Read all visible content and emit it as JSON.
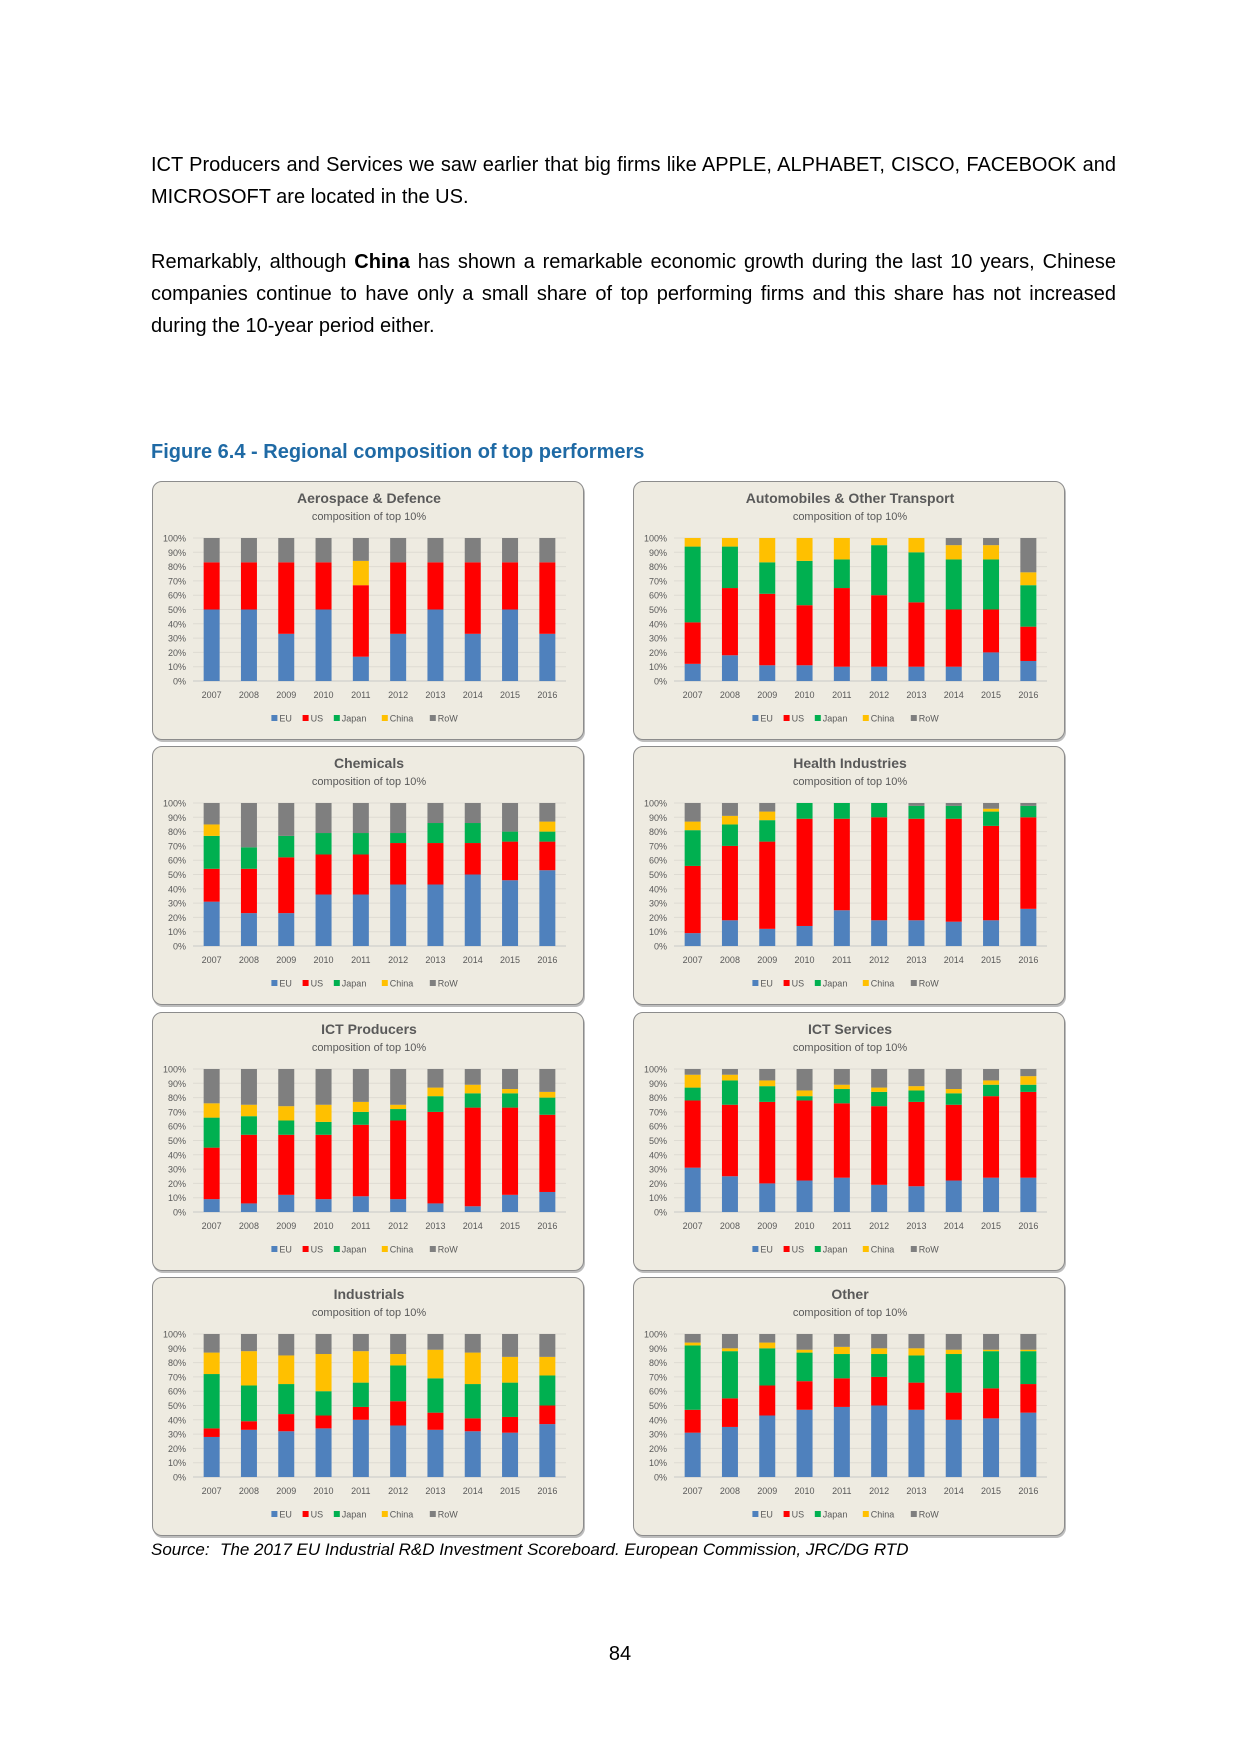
{
  "paragraphs": {
    "p1": "ICT Producers and Services we saw earlier that big firms like APPLE, ALPHABET, CISCO, FACEBOOK and MICROSOFT are located in the US.",
    "p2_before": "Remarkably, although ",
    "p2_bold": "China",
    "p2_after": " has shown a remarkable economic growth during the last 10 years, Chinese companies continue to have only a small share of top performing firms and this share has not increased during the 10-year period either."
  },
  "figure": {
    "caption": "Figure 6.4 - Regional composition of top performers"
  },
  "source": {
    "label": "Source:",
    "text": "The 2017 EU Industrial R&D Investment Scoreboard. European Commission, JRC/DG RTD"
  },
  "page_number": "84",
  "colors": {
    "EU": "#4f81bd",
    "US": "#ff0000",
    "Japan": "#00b050",
    "China": "#ffc000",
    "RoW": "#7f7f7f"
  },
  "chart_data": [
    {
      "type": "bar",
      "stacked": true,
      "title": "Aerospace & Defence",
      "subtitle": "composition of top 10%",
      "categories": [
        "2007",
        "2008",
        "2009",
        "2010",
        "2011",
        "2012",
        "2013",
        "2014",
        "2015",
        "2016"
      ],
      "yticks": [
        "0%",
        "10%",
        "20%",
        "30%",
        "40%",
        "50%",
        "60%",
        "70%",
        "80%",
        "90%",
        "100%"
      ],
      "ylim": [
        0,
        100
      ],
      "legend": "bottom",
      "series": [
        {
          "name": "EU",
          "values": [
            50,
            50,
            33,
            50,
            17,
            33,
            50,
            33,
            50,
            33
          ]
        },
        {
          "name": "US",
          "values": [
            33,
            33,
            50,
            33,
            50,
            50,
            33,
            50,
            33,
            50
          ]
        },
        {
          "name": "Japan",
          "values": [
            0,
            0,
            0,
            0,
            0,
            0,
            0,
            0,
            0,
            0
          ]
        },
        {
          "name": "China",
          "values": [
            0,
            0,
            0,
            0,
            17,
            0,
            0,
            0,
            0,
            0
          ]
        },
        {
          "name": "RoW",
          "values": [
            17,
            17,
            17,
            17,
            16,
            17,
            17,
            17,
            17,
            17
          ]
        }
      ]
    },
    {
      "type": "bar",
      "stacked": true,
      "title": "Automobiles & Other Transport",
      "subtitle": "composition of top 10%",
      "categories": [
        "2007",
        "2008",
        "2009",
        "2010",
        "2011",
        "2012",
        "2013",
        "2014",
        "2015",
        "2016"
      ],
      "yticks": [
        "0%",
        "10%",
        "20%",
        "30%",
        "40%",
        "50%",
        "60%",
        "70%",
        "80%",
        "90%",
        "100%"
      ],
      "ylim": [
        0,
        100
      ],
      "legend": "bottom",
      "series": [
        {
          "name": "EU",
          "values": [
            12,
            18,
            11,
            11,
            10,
            10,
            10,
            10,
            20,
            14
          ]
        },
        {
          "name": "US",
          "values": [
            29,
            47,
            50,
            42,
            55,
            50,
            45,
            40,
            30,
            24
          ]
        },
        {
          "name": "Japan",
          "values": [
            53,
            29,
            22,
            31,
            20,
            35,
            35,
            35,
            35,
            29
          ]
        },
        {
          "name": "China",
          "values": [
            6,
            6,
            17,
            16,
            15,
            5,
            10,
            10,
            10,
            9
          ]
        },
        {
          "name": "RoW",
          "values": [
            0,
            0,
            0,
            0,
            0,
            0,
            0,
            5,
            5,
            24
          ]
        }
      ]
    },
    {
      "type": "bar",
      "stacked": true,
      "title": "Chemicals",
      "subtitle": "composition of top 10%",
      "categories": [
        "2007",
        "2008",
        "2009",
        "2010",
        "2011",
        "2012",
        "2013",
        "2014",
        "2015",
        "2016"
      ],
      "yticks": [
        "0%",
        "10%",
        "20%",
        "30%",
        "40%",
        "50%",
        "60%",
        "70%",
        "80%",
        "90%",
        "100%"
      ],
      "ylim": [
        0,
        100
      ],
      "legend": "bottom",
      "series": [
        {
          "name": "EU",
          "values": [
            31,
            23,
            23,
            36,
            36,
            43,
            43,
            50,
            46,
            53
          ]
        },
        {
          "name": "US",
          "values": [
            23,
            31,
            39,
            28,
            28,
            29,
            29,
            22,
            27,
            20
          ]
        },
        {
          "name": "Japan",
          "values": [
            23,
            15,
            15,
            15,
            15,
            7,
            14,
            14,
            7,
            7
          ]
        },
        {
          "name": "China",
          "values": [
            8,
            0,
            0,
            0,
            0,
            0,
            0,
            0,
            0,
            7
          ]
        },
        {
          "name": "RoW",
          "values": [
            15,
            31,
            23,
            21,
            21,
            21,
            14,
            14,
            20,
            13
          ]
        }
      ]
    },
    {
      "type": "bar",
      "stacked": true,
      "title": "Health Industries",
      "subtitle": "composition of top 10%",
      "categories": [
        "2007",
        "2008",
        "2009",
        "2010",
        "2011",
        "2012",
        "2013",
        "2014",
        "2015",
        "2016"
      ],
      "yticks": [
        "0%",
        "10%",
        "20%",
        "30%",
        "40%",
        "50%",
        "60%",
        "70%",
        "80%",
        "90%",
        "100%"
      ],
      "ylim": [
        0,
        100
      ],
      "legend": "bottom",
      "series": [
        {
          "name": "EU",
          "values": [
            9,
            18,
            12,
            14,
            25,
            18,
            18,
            17,
            18,
            26
          ]
        },
        {
          "name": "US",
          "values": [
            47,
            52,
            61,
            75,
            64,
            72,
            71,
            72,
            66,
            64
          ]
        },
        {
          "name": "Japan",
          "values": [
            25,
            15,
            15,
            11,
            11,
            10,
            9,
            9,
            10,
            8
          ]
        },
        {
          "name": "China",
          "values": [
            6,
            6,
            6,
            0,
            0,
            0,
            0,
            0,
            2,
            0
          ]
        },
        {
          "name": "RoW",
          "values": [
            13,
            9,
            6,
            0,
            0,
            0,
            2,
            2,
            4,
            2
          ]
        }
      ]
    },
    {
      "type": "bar",
      "stacked": true,
      "title": "ICT Producers",
      "subtitle": "composition of top 10%",
      "categories": [
        "2007",
        "2008",
        "2009",
        "2010",
        "2011",
        "2012",
        "2013",
        "2014",
        "2015",
        "2016"
      ],
      "yticks": [
        "0%",
        "10%",
        "20%",
        "30%",
        "40%",
        "50%",
        "60%",
        "70%",
        "80%",
        "90%",
        "100%"
      ],
      "ylim": [
        0,
        100
      ],
      "legend": "bottom",
      "series": [
        {
          "name": "EU",
          "values": [
            9,
            6,
            12,
            9,
            11,
            9,
            6,
            4,
            12,
            14
          ]
        },
        {
          "name": "US",
          "values": [
            36,
            48,
            42,
            45,
            50,
            55,
            64,
            69,
            61,
            54
          ]
        },
        {
          "name": "Japan",
          "values": [
            21,
            13,
            10,
            9,
            9,
            8,
            11,
            10,
            10,
            12
          ]
        },
        {
          "name": "China",
          "values": [
            10,
            8,
            10,
            12,
            7,
            3,
            6,
            6,
            3,
            4
          ]
        },
        {
          "name": "RoW",
          "values": [
            24,
            25,
            26,
            25,
            23,
            25,
            13,
            11,
            14,
            16
          ]
        }
      ]
    },
    {
      "type": "bar",
      "stacked": true,
      "title": "ICT Services",
      "subtitle": "composition of top 10%",
      "categories": [
        "2007",
        "2008",
        "2009",
        "2010",
        "2011",
        "2012",
        "2013",
        "2014",
        "2015",
        "2016"
      ],
      "yticks": [
        "0%",
        "10%",
        "20%",
        "30%",
        "40%",
        "50%",
        "60%",
        "70%",
        "80%",
        "90%",
        "100%"
      ],
      "ylim": [
        0,
        100
      ],
      "legend": "bottom",
      "series": [
        {
          "name": "EU",
          "values": [
            31,
            25,
            20,
            22,
            24,
            19,
            18,
            22,
            24,
            24
          ]
        },
        {
          "name": "US",
          "values": [
            47,
            50,
            57,
            56,
            52,
            55,
            59,
            53,
            57,
            60
          ]
        },
        {
          "name": "Japan",
          "values": [
            9,
            17,
            11,
            3,
            10,
            10,
            8,
            8,
            8,
            5
          ]
        },
        {
          "name": "China",
          "values": [
            9,
            4,
            4,
            4,
            3,
            3,
            3,
            3,
            3,
            6
          ]
        },
        {
          "name": "RoW",
          "values": [
            4,
            4,
            8,
            15,
            11,
            13,
            12,
            14,
            8,
            5
          ]
        }
      ]
    },
    {
      "type": "bar",
      "stacked": true,
      "title": "Industrials",
      "subtitle": "composition of top 10%",
      "categories": [
        "2007",
        "2008",
        "2009",
        "2010",
        "2011",
        "2012",
        "2013",
        "2014",
        "2015",
        "2016"
      ],
      "yticks": [
        "0%",
        "10%",
        "20%",
        "30%",
        "40%",
        "50%",
        "60%",
        "70%",
        "80%",
        "90%",
        "100%"
      ],
      "ylim": [
        0,
        100
      ],
      "legend": "bottom",
      "series": [
        {
          "name": "EU",
          "values": [
            28,
            33,
            32,
            34,
            40,
            36,
            33,
            32,
            31,
            37
          ]
        },
        {
          "name": "US",
          "values": [
            6,
            6,
            12,
            9,
            9,
            17,
            12,
            9,
            11,
            13
          ]
        },
        {
          "name": "Japan",
          "values": [
            38,
            25,
            21,
            17,
            17,
            25,
            24,
            24,
            24,
            21
          ]
        },
        {
          "name": "China",
          "values": [
            15,
            24,
            20,
            26,
            22,
            8,
            20,
            22,
            18,
            13
          ]
        },
        {
          "name": "RoW",
          "values": [
            13,
            12,
            15,
            14,
            12,
            14,
            11,
            13,
            16,
            16
          ]
        }
      ]
    },
    {
      "type": "bar",
      "stacked": true,
      "title": "Other",
      "subtitle": "composition of top 10%",
      "categories": [
        "2007",
        "2008",
        "2009",
        "2010",
        "2011",
        "2012",
        "2013",
        "2014",
        "2015",
        "2016"
      ],
      "yticks": [
        "0%",
        "10%",
        "20%",
        "30%",
        "40%",
        "50%",
        "60%",
        "70%",
        "80%",
        "90%",
        "100%"
      ],
      "ylim": [
        0,
        100
      ],
      "legend": "bottom",
      "series": [
        {
          "name": "EU",
          "values": [
            31,
            35,
            43,
            47,
            49,
            50,
            47,
            40,
            41,
            45
          ]
        },
        {
          "name": "US",
          "values": [
            16,
            20,
            21,
            20,
            20,
            20,
            19,
            19,
            21,
            20
          ]
        },
        {
          "name": "Japan",
          "values": [
            45,
            33,
            26,
            20,
            17,
            16,
            19,
            27,
            26,
            23
          ]
        },
        {
          "name": "China",
          "values": [
            2,
            2,
            4,
            2,
            5,
            4,
            5,
            3,
            1,
            1
          ]
        },
        {
          "name": "RoW",
          "values": [
            6,
            10,
            6,
            11,
            9,
            10,
            10,
            11,
            11,
            11
          ]
        }
      ]
    }
  ]
}
